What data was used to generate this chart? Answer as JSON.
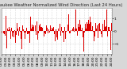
{
  "title": "Milwaukee Weather Normalized Wind Direction (Last 24 Hours)",
  "background_color": "#d8d8d8",
  "plot_bg_color": "#ffffff",
  "bar_color": "#dd0000",
  "grid_color": "#bbbbbb",
  "n_points": 288,
  "ylim": [
    -1.8,
    1.8
  ],
  "y_ticks": [
    -1,
    0,
    1
  ],
  "title_fontsize": 3.8,
  "tick_fontsize": 3.2,
  "ylabel_right": true
}
